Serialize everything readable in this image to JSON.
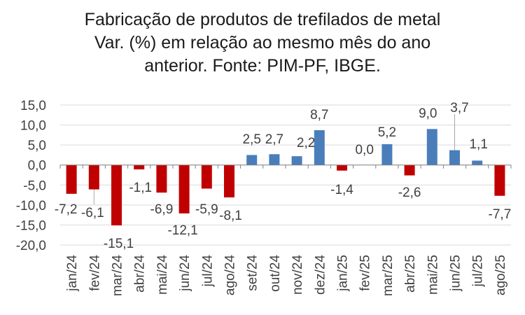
{
  "chart_data": {
    "type": "bar",
    "title_lines": [
      "Fabricação de produtos de trefilados de metal",
      "Var. (%) em relação ao mesmo mês do ano",
      "anterior. Fonte: PIM-PF, IBGE."
    ],
    "categories": [
      "jan/24",
      "fev/24",
      "mar/24",
      "abr/24",
      "mai/24",
      "jun/24",
      "jul/24",
      "ago/24",
      "set/24",
      "out/24",
      "nov/24",
      "dez/24",
      "jan/25",
      "fev/25",
      "mar/25",
      "abr/25",
      "mai/25",
      "jun/25",
      "jul/25",
      "ago/25"
    ],
    "values": [
      -7.2,
      -6.1,
      -15.1,
      -1.1,
      -6.9,
      -12.1,
      -5.9,
      -8.1,
      2.5,
      2.7,
      2.2,
      8.7,
      -1.4,
      0.0,
      5.2,
      -2.6,
      9.0,
      3.7,
      1.1,
      -7.7
    ],
    "data_labels": [
      "-7,2",
      "-6,1",
      "-15,1",
      "-1,1",
      "-6,9",
      "-12,1",
      "-5,9",
      "-8,1",
      "2,5",
      "2,7",
      "2,2",
      "8,7",
      "-1,4",
      "0,0",
      "5,2",
      "-2,6",
      "9,0",
      "3,7",
      "1,1",
      "-7,7"
    ],
    "yticks": [
      15,
      10,
      5,
      0,
      -5,
      -10,
      -15,
      -20
    ],
    "ytick_labels": [
      "15,0",
      "10,0",
      "5,0",
      "0,0",
      "-5,0",
      "-10,0",
      "-15,0",
      "-20,0"
    ],
    "ylim": [
      -20,
      15
    ],
    "xlabel": "",
    "ylabel": "",
    "grid": true,
    "legend": "none",
    "colors": {
      "positive": "#4a7ebb",
      "negative": "#c00000",
      "grid": "#d9d9d9",
      "axis": "#7f7f7f",
      "text": "#404040"
    }
  }
}
